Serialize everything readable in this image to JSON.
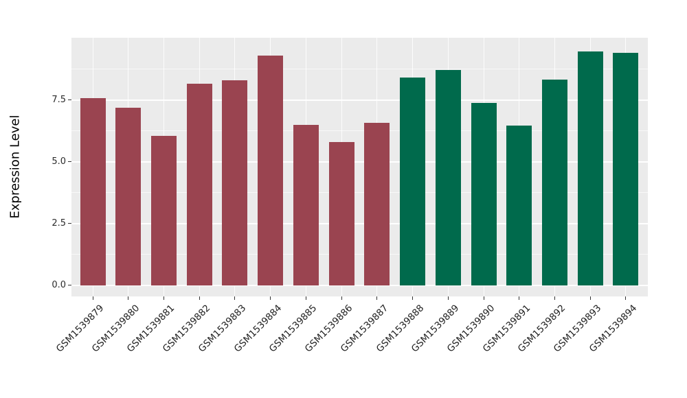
{
  "chart_data": {
    "type": "bar",
    "title": "",
    "xlabel": "",
    "ylabel": "Expression Level",
    "categories": [
      "GSM1539879",
      "GSM1539880",
      "GSM1539881",
      "GSM1539882",
      "GSM1539883",
      "GSM1539884",
      "GSM1539885",
      "GSM1539886",
      "GSM1539887",
      "GSM1539888",
      "GSM1539889",
      "GSM1539890",
      "GSM1539891",
      "GSM1539892",
      "GSM1539893",
      "GSM1539894"
    ],
    "values": [
      7.57,
      7.19,
      6.04,
      8.15,
      8.29,
      9.3,
      6.48,
      5.79,
      6.57,
      8.41,
      8.73,
      7.37,
      6.46,
      8.33,
      9.48,
      9.42
    ],
    "colors": [
      "#9A4450",
      "#9A4450",
      "#9A4450",
      "#9A4450",
      "#9A4450",
      "#9A4450",
      "#9A4450",
      "#9A4450",
      "#9A4450",
      "#006A4C",
      "#006A4C",
      "#006A4C",
      "#006A4C",
      "#006A4C",
      "#006A4C",
      "#006A4C"
    ],
    "group_colors": {
      "left_group": "#9A4450",
      "right_group": "#006A4C"
    },
    "ytick_labels": [
      "0.0",
      "2.5",
      "5.0",
      "7.5"
    ],
    "ytick_values": [
      0,
      2.5,
      5.0,
      7.5
    ],
    "yminor_values": [
      1.25,
      3.75,
      6.25,
      8.75
    ],
    "ylim": [
      -0.46,
      9.97
    ],
    "grid": "on",
    "legend": "none",
    "panel_background": "#EBEBEB",
    "grid_color": "#FFFFFF"
  }
}
